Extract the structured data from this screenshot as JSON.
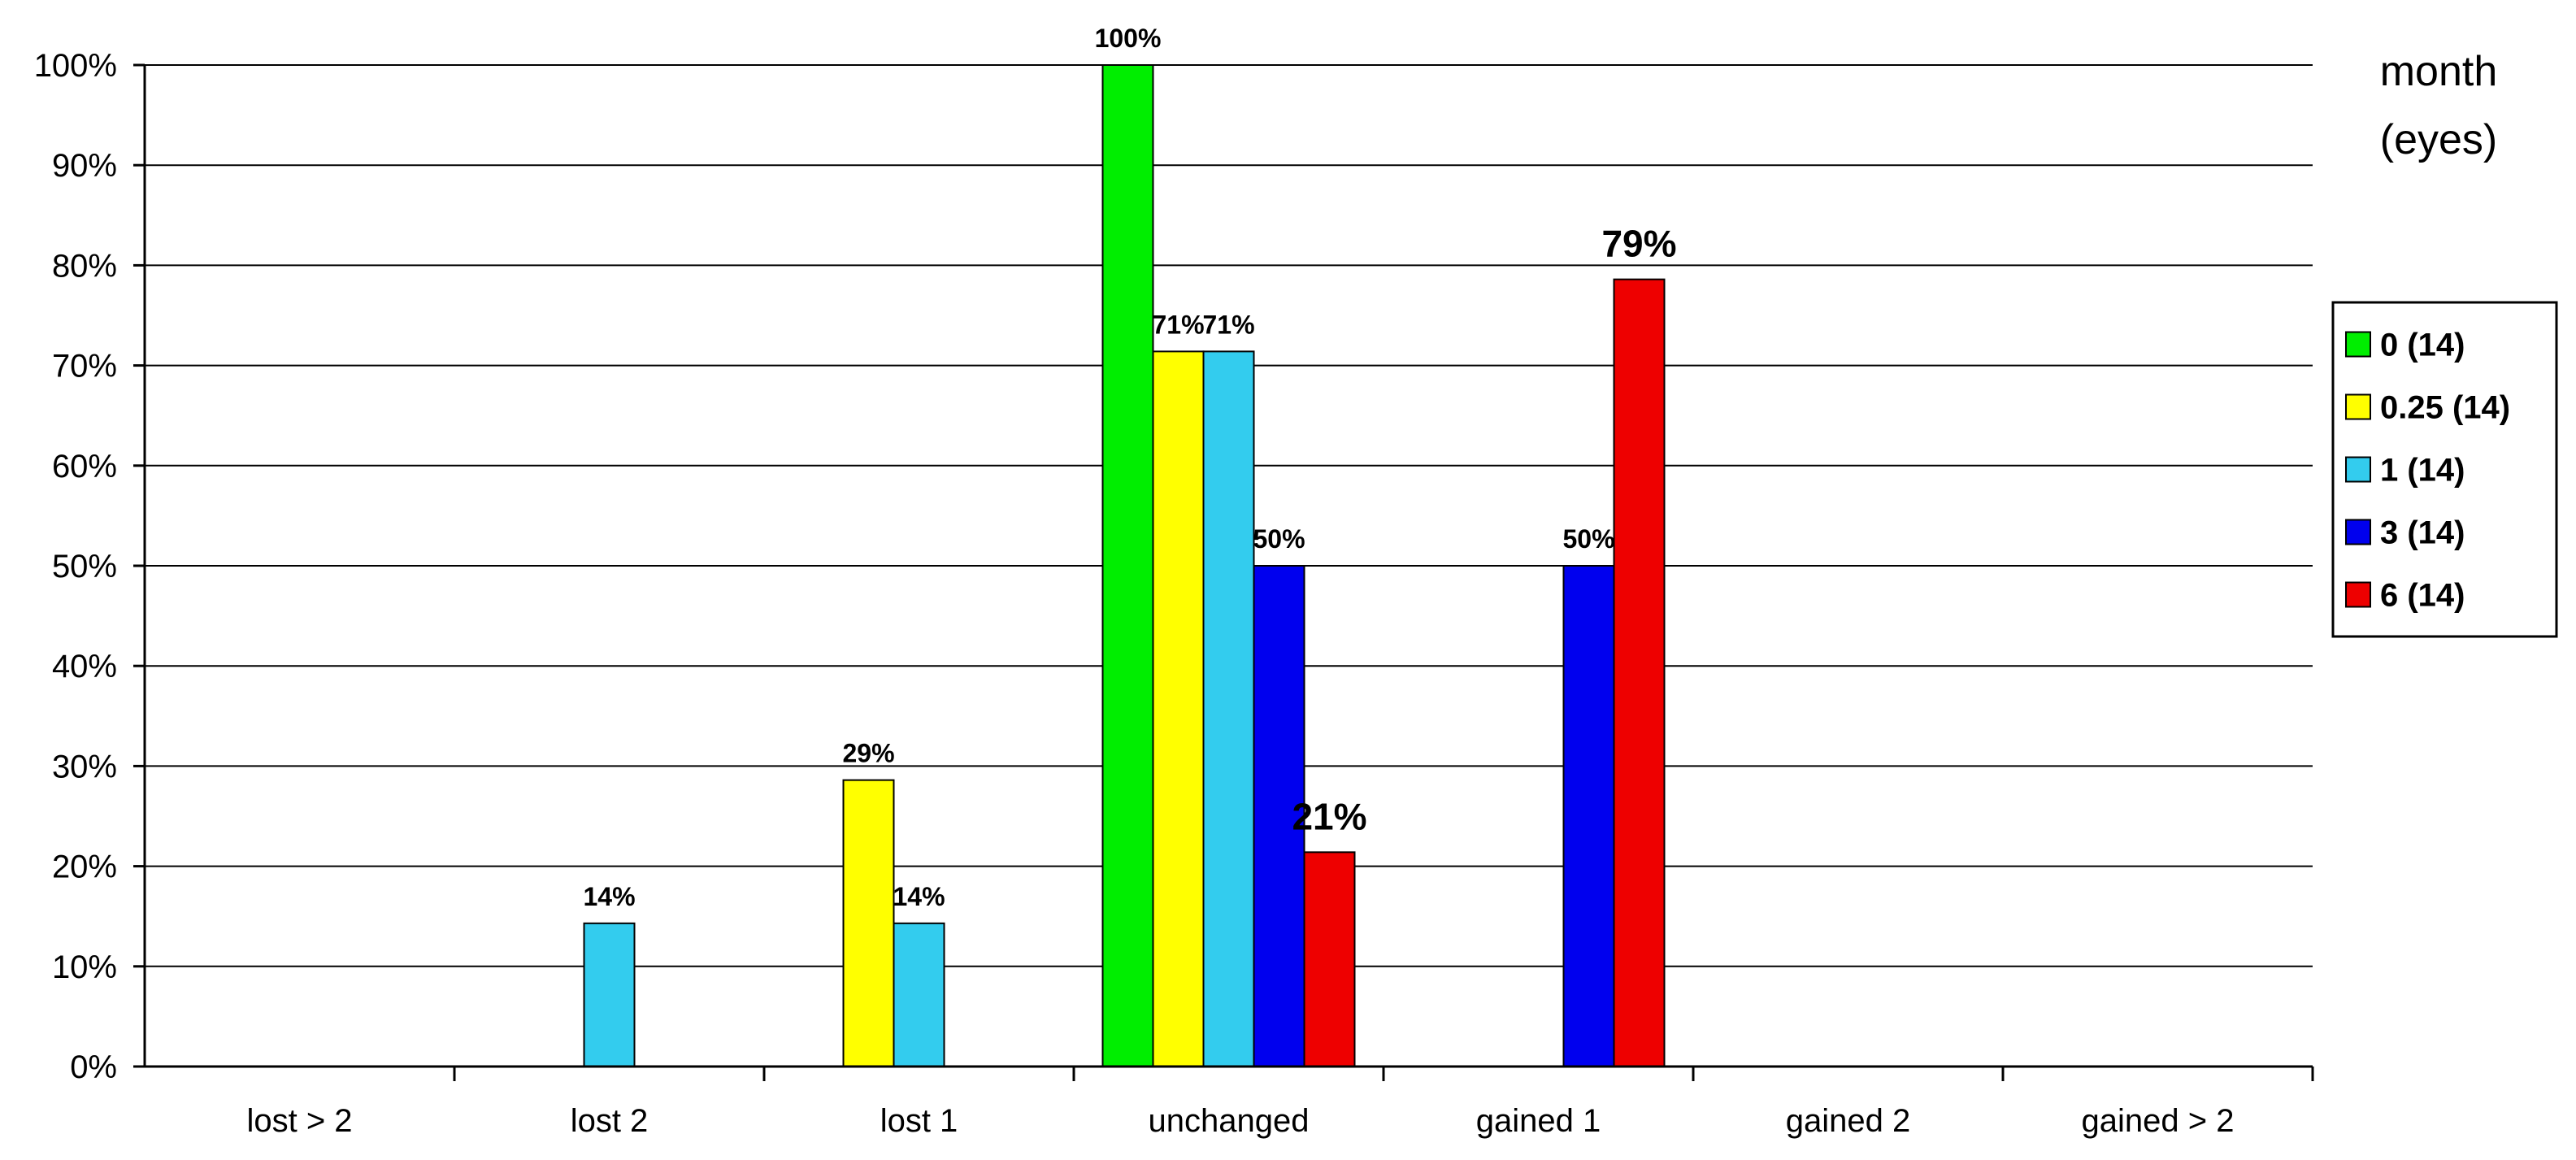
{
  "chart_data": {
    "type": "bar",
    "title": "",
    "xlabel": "",
    "ylabel": "",
    "ylim": [
      0,
      100
    ],
    "yticks": [
      "0%",
      "10%",
      "20%",
      "30%",
      "40%",
      "50%",
      "60%",
      "70%",
      "80%",
      "90%",
      "100%"
    ],
    "grid": true,
    "legend_position": "right",
    "legend_title": [
      "month",
      "(eyes)"
    ],
    "categories": [
      "lost > 2",
      "lost 2",
      "lost 1",
      "unchanged",
      "gained 1",
      "gained 2",
      "gained > 2"
    ],
    "series": [
      {
        "name": "0 (14)",
        "color": "#00ee00",
        "values": [
          0,
          0,
          0,
          100,
          0,
          0,
          0
        ],
        "labels": [
          "",
          "",
          "",
          "100%",
          "",
          "",
          ""
        ]
      },
      {
        "name": "0.25 (14)",
        "color": "#ffff00",
        "values": [
          0,
          0,
          28.6,
          71.4,
          0,
          0,
          0
        ],
        "labels": [
          "",
          "",
          "29%",
          "71%",
          "",
          "",
          ""
        ]
      },
      {
        "name": "1 (14)",
        "color": "#33ccee",
        "values": [
          0,
          14.3,
          14.3,
          71.4,
          0,
          0,
          0
        ],
        "labels": [
          "",
          "14%",
          "14%",
          "71%",
          "",
          "",
          ""
        ]
      },
      {
        "name": "3 (14)",
        "color": "#0000ee",
        "values": [
          0,
          0,
          0,
          50,
          50,
          0,
          0
        ],
        "labels": [
          "",
          "",
          "",
          "50%",
          "50%",
          "",
          ""
        ]
      },
      {
        "name": "6 (14)",
        "color": "#ee0000",
        "values": [
          0,
          0,
          0,
          21.4,
          78.6,
          0,
          0
        ],
        "labels": [
          "",
          "",
          "",
          "21%",
          "79%",
          "",
          ""
        ]
      }
    ]
  }
}
